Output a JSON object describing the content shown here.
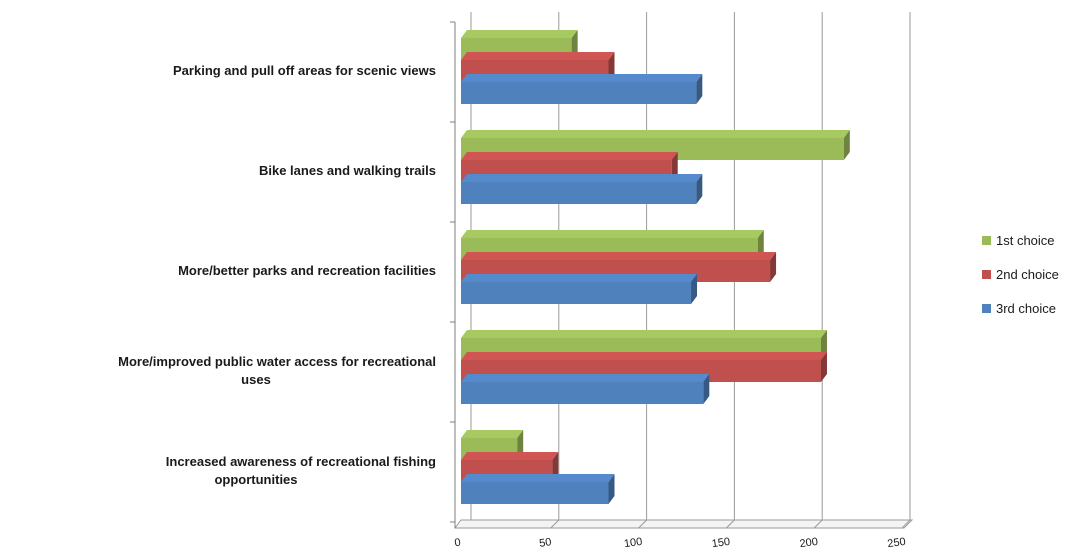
{
  "chart_data": {
    "type": "bar",
    "orientation": "horizontal",
    "style": "3d-clustered",
    "categories": [
      [
        "Parking and pull off areas for scenic views"
      ],
      [
        "Bike lanes and walking trails"
      ],
      [
        "More/better parks and recreation facilities"
      ],
      [
        "More/improved public water access for recreational",
        "uses"
      ],
      [
        "Increased awareness of recreational fishing",
        "opportunities"
      ]
    ],
    "series": [
      {
        "name": "1st choice",
        "color": "#9BBB59",
        "values": [
          63,
          218,
          169,
          205,
          32
        ]
      },
      {
        "name": "2nd choice",
        "color": "#C0504D",
        "values": [
          84,
          120,
          176,
          205,
          52
        ]
      },
      {
        "name": "3rd choice",
        "color": "#4F81BD",
        "values": [
          134,
          134,
          131,
          138,
          84
        ]
      }
    ],
    "xlim": [
      0,
      250
    ],
    "ticks": [
      "0",
      "50",
      "100",
      "150",
      "200",
      "250"
    ],
    "grid": true,
    "legend": "right"
  }
}
